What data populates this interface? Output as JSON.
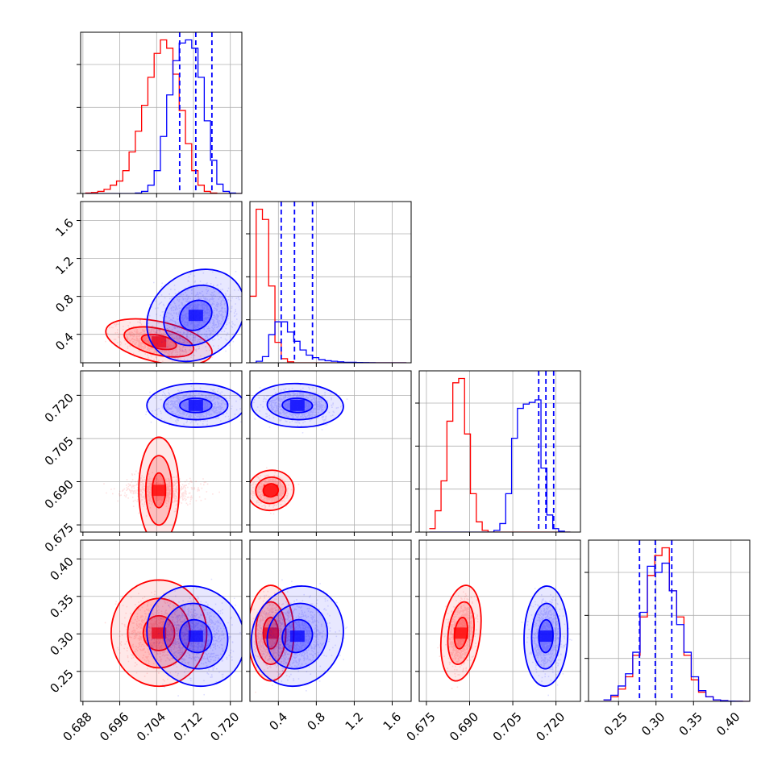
{
  "chart_data": {
    "type": "corner",
    "parameters": [
      {
        "ticks": [
          0.688,
          0.696,
          0.704,
          0.712,
          0.72
        ],
        "tick_labels": [
          "0.688",
          "0.696",
          "0.704",
          "0.712",
          "0.720"
        ],
        "range": [
          0.6875,
          0.7225
        ]
      },
      {
        "ticks": [
          0.4,
          0.8,
          1.2,
          1.6
        ],
        "tick_labels": [
          "0.4",
          "0.8",
          "1.2",
          "1.6"
        ],
        "range": [
          0.1,
          1.8
        ]
      },
      {
        "ticks": [
          0.675,
          0.69,
          0.705,
          0.72
        ],
        "tick_labels": [
          "0.675",
          "0.690",
          "0.705",
          "0.720"
        ],
        "range": [
          0.6725,
          0.7285
        ]
      },
      {
        "ticks": [
          0.25,
          0.3,
          0.35,
          0.4
        ],
        "tick_labels": [
          "0.25",
          "0.30",
          "0.35",
          "0.40"
        ],
        "range": [
          0.21,
          0.425
        ]
      }
    ],
    "series": [
      {
        "color": "#ff0000",
        "mean": [
          0.7045,
          0.32,
          0.687,
          0.301
        ],
        "std": [
          0.0038,
          0.08,
          0.0023,
          0.021
        ],
        "correlation": [
          [
            1.0,
            -0.45,
            0.0,
            0.0
          ],
          [
            -0.45,
            1.0,
            0.05,
            0.0
          ],
          [
            0.0,
            0.05,
            1.0,
            0.25
          ],
          [
            0.0,
            0.0,
            0.25,
            1.0
          ]
        ],
        "histograms": [
          {
            "edges": [
              0.6885,
              0.7225
            ],
            "counts": [
              0.5,
              1,
              2,
              4,
              8,
              12,
              22,
              40,
              60,
              85,
              112,
              135,
              148,
              140,
              115,
              80,
              48,
              22,
              8,
              2,
              0.5,
              0,
              0,
              0,
              0
            ]
          },
          {
            "edges": [
              0.1,
              1.75
            ],
            "counts": [
              130,
              300,
              280,
              150,
              40,
              8,
              2,
              0,
              0,
              0,
              0,
              0,
              0,
              0,
              0,
              0,
              0,
              0,
              0,
              0,
              0,
              0,
              0,
              0,
              0
            ]
          },
          {
            "edges": [
              0.676,
              0.725
            ],
            "counts": [
              4,
              25,
              60,
              130,
              175,
              180,
              115,
              45,
              12,
              2,
              0,
              0,
              0,
              0,
              0,
              0,
              0,
              0,
              0,
              0,
              0,
              0,
              0,
              0
            ]
          },
          {
            "edges": [
              0.23,
              0.425
            ],
            "counts": [
              1,
              3,
              8,
              16,
              30,
              55,
              82,
              95,
              100,
              72,
              55,
              30,
              14,
              6,
              3,
              1,
              0.5,
              0.2,
              0.1,
              0
            ]
          }
        ]
      },
      {
        "color": "#0000ff",
        "mean": [
          0.7125,
          0.6,
          0.7165,
          0.297
        ],
        "std": [
          0.0035,
          0.16,
          0.0025,
          0.022
        ],
        "correlation": [
          [
            1.0,
            0.2,
            0.0,
            -0.1
          ],
          [
            0.2,
            1.0,
            -0.05,
            0.1
          ],
          [
            0.0,
            -0.05,
            1.0,
            0.05
          ],
          [
            -0.1,
            0.1,
            0.05,
            1.0
          ]
        ],
        "histograms": [
          {
            "edges": [
              0.6885,
              0.7225
            ],
            "counts": [
              0,
              0,
              0,
              0,
              0,
              0,
              0,
              0,
              0.5,
              2,
              8,
              22,
              55,
              95,
              128,
              145,
              148,
              140,
              112,
              70,
              32,
              9,
              2,
              0.5,
              0
            ]
          },
          {
            "edges": [
              0.1,
              1.75
            ],
            "counts": [
              0,
              3,
              12,
              55,
              80,
              80,
              60,
              42,
              25,
              15,
              10,
              6,
              4,
              3,
              2,
              1,
              1,
              0.5,
              0.3,
              0.2,
              0,
              0,
              0,
              0,
              0
            ]
          },
          {
            "edges": [
              0.676,
              0.725
            ],
            "counts": [
              0,
              0,
              0,
              0,
              0,
              0,
              0,
              0,
              0,
              0,
              0,
              2,
              10,
              45,
              110,
              145,
              150,
              152,
              155,
              75,
              20,
              4,
              1,
              0
            ]
          },
          {
            "edges": [
              0.23,
              0.425
            ],
            "counts": [
              1,
              4,
              10,
              18,
              32,
              58,
              88,
              84,
              90,
              72,
              50,
              32,
              16,
              7,
              3,
              1,
              0.5,
              0.2,
              0.1,
              0
            ]
          }
        ]
      }
    ],
    "quantile_lines": {
      "color": "#0000ff",
      "values": [
        [
          0.709,
          0.7125,
          0.716
        ],
        [
          0.43,
          0.57,
          0.76
        ],
        [
          0.714,
          0.7165,
          0.7192
        ],
        [
          0.278,
          0.299,
          0.321
        ]
      ]
    },
    "contour_levels": [
      0.39,
      0.86,
      0.99
    ],
    "grid": true
  }
}
